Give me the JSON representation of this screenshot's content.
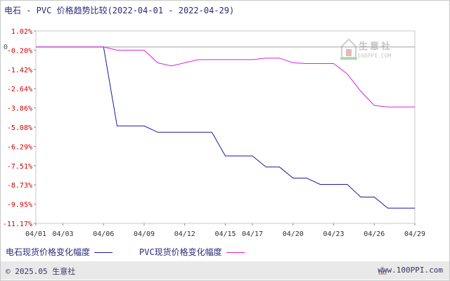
{
  "title": "电石 - PVC 价格趋势比较(2022-04-01 - 2022-04-29)",
  "watermark": {
    "name": "生意社",
    "url": "100PPI.COM"
  },
  "zero_label": "0",
  "footer": {
    "copyright": "© 2025.05 生意社",
    "site": "www.100PPI.com"
  },
  "colors": {
    "series1": "#1a1aa6",
    "series2": "#e020e0",
    "frame": "#c8c8c8",
    "ytick": "#cc0000",
    "grid": "#a0a0a0"
  },
  "chart_data": {
    "type": "line",
    "title": "电石 - PVC 价格趋势比较(2022-04-01 - 2022-04-29)",
    "xlabel": "",
    "ylabel": "",
    "ylim": [
      -11.17,
      1.02
    ],
    "grid": false,
    "legend_position": "bottom",
    "y_ticks": [
      "1.02%",
      "-0.20%",
      "-1.42%",
      "-2.64%",
      "-3.86%",
      "-5.08%",
      "-6.29%",
      "-7.51%",
      "-8.73%",
      "-9.95%",
      "-11.17%"
    ],
    "x_ticks": [
      "04/01",
      "04/03",
      "04/06",
      "04/09",
      "04/12",
      "04/15",
      "04/17",
      "04/20",
      "04/23",
      "04/26",
      "04/29"
    ],
    "x": [
      "04/01",
      "04/02",
      "04/03",
      "04/04",
      "04/05",
      "04/06",
      "04/07",
      "04/08",
      "04/09",
      "04/10",
      "04/11",
      "04/12",
      "04/13",
      "04/14",
      "04/15",
      "04/16",
      "04/17",
      "04/18",
      "04/19",
      "04/20",
      "04/21",
      "04/22",
      "04/23",
      "04/24",
      "04/25",
      "04/26",
      "04/27",
      "04/28",
      "04/29"
    ],
    "series": [
      {
        "name": "电石现货价格变化幅度",
        "values": [
          0,
          0,
          0,
          0,
          0,
          0,
          -5.0,
          -5.0,
          -5.0,
          -5.4,
          -5.4,
          -5.4,
          -5.4,
          -5.4,
          -6.9,
          -6.9,
          -6.9,
          -7.6,
          -7.6,
          -8.3,
          -8.3,
          -8.7,
          -8.7,
          -8.7,
          -9.5,
          -9.5,
          -10.2,
          -10.2,
          -10.2
        ]
      },
      {
        "name": "PVC现货价格变化幅度",
        "values": [
          0,
          0,
          0,
          0,
          0,
          0,
          -0.2,
          -0.2,
          -0.2,
          -1.0,
          -1.2,
          -1.0,
          -0.8,
          -0.8,
          -0.8,
          -0.8,
          -0.8,
          -0.7,
          -0.7,
          -1.0,
          -1.05,
          -1.05,
          -1.05,
          -1.7,
          -2.8,
          -3.7,
          -3.8,
          -3.8,
          -3.8
        ]
      }
    ]
  }
}
